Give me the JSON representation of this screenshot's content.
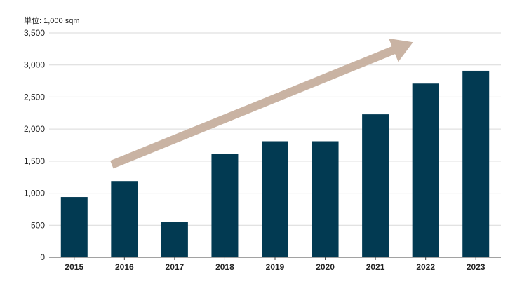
{
  "chart_data": {
    "type": "bar",
    "unit_label": "単位: 1,000 sqm",
    "categories": [
      "2015",
      "2016",
      "2017",
      "2018",
      "2019",
      "2020",
      "2021",
      "2022",
      "2023"
    ],
    "values": [
      940,
      1190,
      550,
      1610,
      1810,
      1810,
      2230,
      2710,
      2910
    ],
    "ylim": [
      0,
      3500
    ],
    "yticks": [
      0,
      500,
      1000,
      1500,
      2000,
      2500,
      3000,
      3500
    ],
    "ytick_labels": [
      "0",
      "500",
      "1,000",
      "1,500",
      "2,000",
      "2,500",
      "3,000",
      "3,500"
    ],
    "grid": true,
    "legend": "none",
    "trend_arrow": {
      "from_category": "2016",
      "from_value": 1500,
      "to_category": "2022",
      "to_value": 3300
    }
  },
  "colors": {
    "bar": "#023a52",
    "arrow": "#c9b3a3",
    "grid": "#d9d9d9",
    "axis": "#444444",
    "text": "#222222"
  }
}
